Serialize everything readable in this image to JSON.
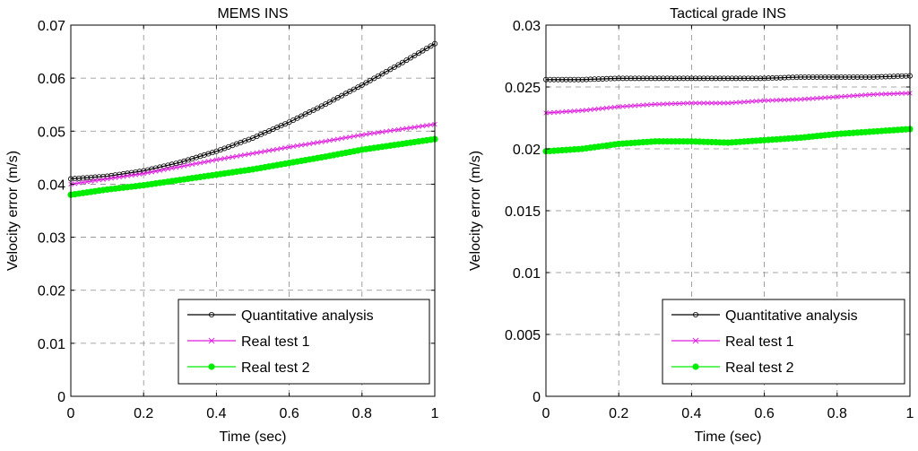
{
  "chart_data": [
    {
      "type": "line",
      "title": "MEMS INS",
      "xlabel": "Time (sec)",
      "ylabel": "Velocity error (m/s)",
      "xlim": [
        0,
        1
      ],
      "ylim": [
        0,
        0.07
      ],
      "xticks": [
        0,
        0.2,
        0.4,
        0.6,
        0.8,
        1
      ],
      "xtick_labels": [
        "0",
        "0.2",
        "0.4",
        "0.6",
        "0.8",
        "1"
      ],
      "yticks": [
        0,
        0.01,
        0.02,
        0.03,
        0.04,
        0.05,
        0.06,
        0.07
      ],
      "ytick_labels": [
        "0",
        "0.01",
        "0.02",
        "0.03",
        "0.04",
        "0.05",
        "0.06",
        "0.07"
      ],
      "grid": true,
      "legend_position": "bottom-right",
      "x": [
        0,
        0.1,
        0.2,
        0.3,
        0.4,
        0.5,
        0.6,
        0.7,
        0.8,
        0.9,
        1.0
      ],
      "series": [
        {
          "name": "Quantitative analysis",
          "color": "#000000",
          "marker": "circle-open",
          "values": [
            0.041,
            0.0415,
            0.0425,
            0.0441,
            0.0462,
            0.0487,
            0.0517,
            0.0551,
            0.0587,
            0.0625,
            0.0665
          ]
        },
        {
          "name": "Real test 1",
          "color": "#e01ee0",
          "marker": "cross",
          "values": [
            0.04,
            0.041,
            0.042,
            0.0433,
            0.0446,
            0.0458,
            0.047,
            0.0481,
            0.0493,
            0.0503,
            0.0513
          ]
        },
        {
          "name": "Real test 2",
          "color": "#00ee00",
          "marker": "dot-filled",
          "values": [
            0.038,
            0.039,
            0.0398,
            0.0408,
            0.0418,
            0.0428,
            0.044,
            0.0452,
            0.0465,
            0.0475,
            0.0485
          ]
        }
      ]
    },
    {
      "type": "line",
      "title": "Tactical grade INS",
      "xlabel": "Time (sec)",
      "ylabel": "Velocity error (m/s)",
      "xlim": [
        0,
        1
      ],
      "ylim": [
        0,
        0.03
      ],
      "xticks": [
        0,
        0.2,
        0.4,
        0.6,
        0.8,
        1
      ],
      "xtick_labels": [
        "0",
        "0.2",
        "0.4",
        "0.6",
        "0.8",
        "1"
      ],
      "yticks": [
        0,
        0.005,
        0.01,
        0.015,
        0.02,
        0.025,
        0.03
      ],
      "ytick_labels": [
        "0",
        "0.005",
        "0.01",
        "0.015",
        "0.02",
        "0.025",
        "0.03"
      ],
      "grid": true,
      "legend_position": "bottom-right",
      "x": [
        0,
        0.1,
        0.2,
        0.3,
        0.4,
        0.5,
        0.6,
        0.7,
        0.8,
        0.9,
        1.0
      ],
      "series": [
        {
          "name": "Quantitative analysis",
          "color": "#000000",
          "marker": "circle-open",
          "values": [
            0.0256,
            0.0256,
            0.0257,
            0.0257,
            0.0257,
            0.0257,
            0.0257,
            0.0258,
            0.0258,
            0.0258,
            0.0259
          ]
        },
        {
          "name": "Real test 1",
          "color": "#e01ee0",
          "marker": "cross",
          "values": [
            0.0229,
            0.0231,
            0.0234,
            0.0236,
            0.0237,
            0.0237,
            0.0239,
            0.024,
            0.0242,
            0.0244,
            0.0245
          ]
        },
        {
          "name": "Real test 2",
          "color": "#00ee00",
          "marker": "dot-filled",
          "values": [
            0.0198,
            0.02,
            0.0204,
            0.0206,
            0.0206,
            0.0205,
            0.0207,
            0.0209,
            0.0212,
            0.0214,
            0.0216
          ]
        }
      ]
    }
  ]
}
